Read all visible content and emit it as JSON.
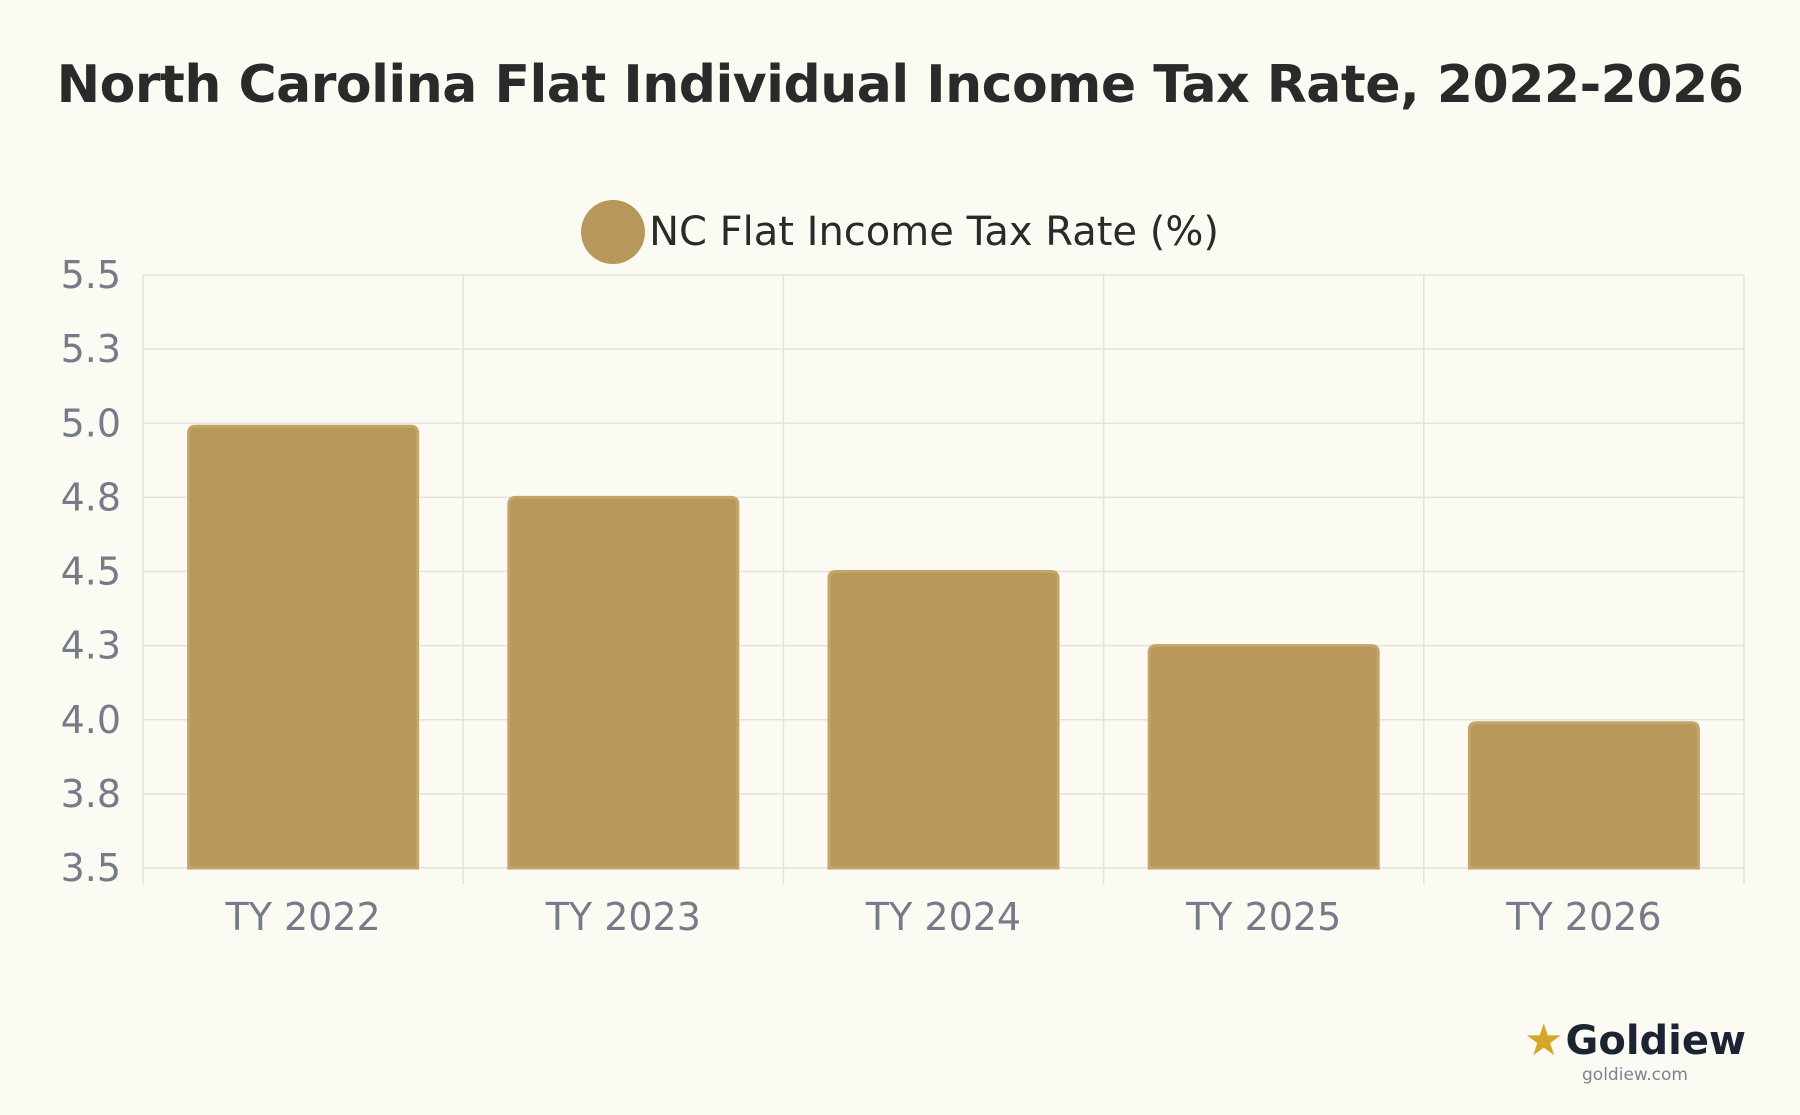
{
  "chart_data": {
    "type": "bar",
    "title": "North Carolina Flat Individual Income Tax Rate, 2022-2026",
    "categories": [
      "TY 2022",
      "TY 2023",
      "TY 2024",
      "TY 2025",
      "TY 2026"
    ],
    "series": [
      {
        "name": "NC Flat Income Tax Rate (%)",
        "values": [
          4.99,
          4.75,
          4.5,
          4.25,
          3.99
        ],
        "color": "#b8975a"
      }
    ],
    "y_ticks": [
      "5.5",
      "5.3",
      "5.0",
      "4.8",
      "4.5",
      "4.3",
      "4.0",
      "3.8",
      "3.5"
    ],
    "ylim": [
      3.5,
      5.5
    ],
    "xlabel": "",
    "ylabel": "",
    "grid": true,
    "legend_position": "top-center"
  },
  "colors": {
    "background": "#fbfaf3",
    "bar": "#b8975a",
    "bar_border": "#c4a468",
    "grid": "#e3e3de",
    "tick_text": "#757b88",
    "title_text": "#2a2a2a"
  },
  "brand": {
    "icon": "star-icon",
    "name": "Goldiew",
    "url": "goldiew.com"
  }
}
